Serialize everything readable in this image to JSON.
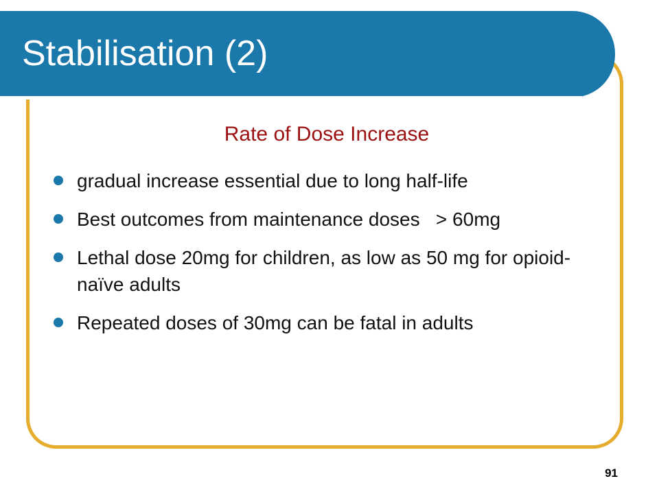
{
  "slide": {
    "title": "Stabilisation (2)",
    "subheading": "Rate of Dose Increase",
    "bullets": [
      "gradual increase essential due to long half-life",
      "Best outcomes from maintenance doses   > 60mg",
      "Lethal dose 20mg for children, as low as 50 mg for opioid-naïve adults",
      "Repeated doses of 30mg can be fatal in adults"
    ],
    "page_number": "91"
  },
  "colors": {
    "title_banner": "#1b78aa",
    "frame_border": "#e6ac2e",
    "subheading": "#9b1111",
    "bullet_marker": "#1b78aa"
  }
}
